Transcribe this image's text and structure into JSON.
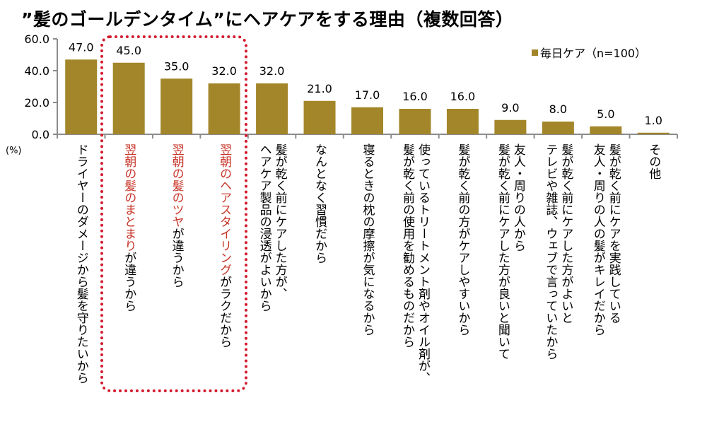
{
  "chart_data": {
    "type": "bar",
    "title": "”髪のゴールデンタイム”にヘアケアをする理由（複数回答）",
    "ylabel": "(%)",
    "ylim": [
      0,
      60
    ],
    "yticks": [
      "0.0",
      "20.0",
      "40.0",
      "60.0"
    ],
    "legend_position": "top-right",
    "grid": false,
    "bar_color": "#a3862a",
    "highlight_color": "#c8362a",
    "box_color": "#d4182c",
    "series": [
      {
        "name": "毎日ケア（n=100）",
        "values": [
          47.0,
          45.0,
          35.0,
          32.0,
          32.0,
          21.0,
          17.0,
          16.0,
          16.0,
          9.0,
          8.0,
          5.0,
          1.0
        ],
        "value_labels": [
          "47.0",
          "45.0",
          "35.0",
          "32.0",
          "32.0",
          "21.0",
          "17.0",
          "16.0",
          "16.0",
          "9.0",
          "8.0",
          "5.0",
          "1.0"
        ]
      }
    ],
    "categories": [
      {
        "lines": [
          [
            {
              "text": "ドライヤーのダメージから髪を守りたいから",
              "hl": false
            }
          ]
        ]
      },
      {
        "lines": [
          [
            {
              "text": "翌朝の髪のまとまり",
              "hl": true
            },
            {
              "text": "が違うから",
              "hl": false
            }
          ]
        ]
      },
      {
        "lines": [
          [
            {
              "text": "翌朝の髪のツヤ",
              "hl": true
            },
            {
              "text": "が違うから",
              "hl": false
            }
          ]
        ]
      },
      {
        "lines": [
          [
            {
              "text": "翌朝のヘアスタイリング",
              "hl": true
            },
            {
              "text": "がラクだから",
              "hl": false
            }
          ]
        ]
      },
      {
        "lines": [
          [
            {
              "text": "髪が乾く前にケアした方が、",
              "hl": false
            }
          ],
          [
            {
              "text": "ヘアケア製品の浸透がよいから",
              "hl": false
            }
          ]
        ]
      },
      {
        "lines": [
          [
            {
              "text": "なんとなく習慣だから",
              "hl": false
            }
          ]
        ]
      },
      {
        "lines": [
          [
            {
              "text": "寝るときの枕の摩擦が気になるから",
              "hl": false
            }
          ]
        ]
      },
      {
        "lines": [
          [
            {
              "text": "使っているトリートメント剤やオイル剤が、",
              "hl": false
            }
          ],
          [
            {
              "text": "髪が乾く前の使用を勧めるものだから",
              "hl": false
            }
          ]
        ]
      },
      {
        "lines": [
          [
            {
              "text": "髪が乾く前の方がケアしやすいから",
              "hl": false
            }
          ]
        ]
      },
      {
        "lines": [
          [
            {
              "text": "友人・周りの人から",
              "hl": false
            }
          ],
          [
            {
              "text": "髪が乾く前にケアした方が良いと聞いて",
              "hl": false
            }
          ]
        ]
      },
      {
        "lines": [
          [
            {
              "text": "髪が乾く前にケアした方がよいと",
              "hl": false
            }
          ],
          [
            {
              "text": "テレビや雑誌、ウェブで言っていたから",
              "hl": false
            }
          ]
        ]
      },
      {
        "lines": [
          [
            {
              "text": "髪が乾く前にケアを実践している",
              "hl": false
            }
          ],
          [
            {
              "text": "友人・周りの人の髪がキレイだから",
              "hl": false
            }
          ]
        ]
      },
      {
        "lines": [
          [
            {
              "text": "その他",
              "hl": false
            }
          ]
        ]
      }
    ]
  }
}
